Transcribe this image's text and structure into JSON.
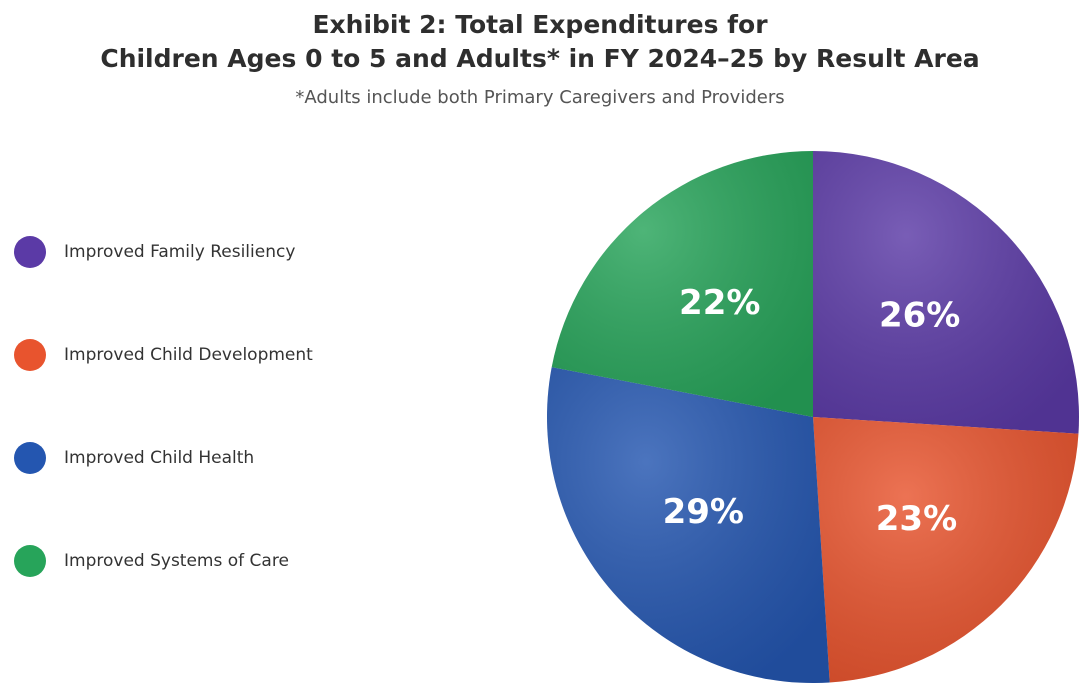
{
  "chart_data": {
    "type": "pie",
    "title": [
      "Exhibit 2: Total Expenditures for",
      "Children Ages 0 to 5 and Adults*  in FY 2024–25 by Result Area"
    ],
    "subtitle": "*Adults include both Primary Caregivers and Providers",
    "categories": [
      "Improved Family Resiliency",
      "Improved Child Development",
      "Improved Child Health",
      "Improved Systems of Care"
    ],
    "values": [
      26,
      23,
      29,
      22
    ],
    "value_labels": [
      "26%",
      "23%",
      "29%",
      "22%"
    ],
    "colors": [
      "#5b3aa6",
      "#e8542e",
      "#2456b0",
      "#27a45a"
    ],
    "legend": "left"
  }
}
